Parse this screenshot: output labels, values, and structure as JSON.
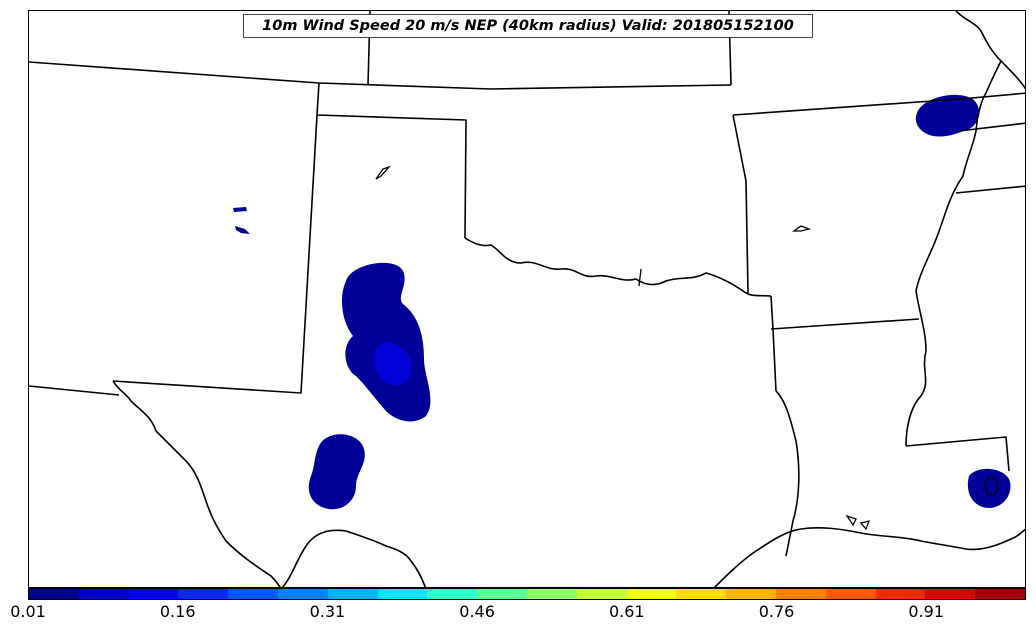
{
  "title": "10m Wind Speed 20 m/s NEP (40km radius) Valid: 201805152100",
  "colorbar": {
    "colors": [
      "#00008b",
      "#0000c8",
      "#0000ff",
      "#0a28ff",
      "#005aff",
      "#0082ff",
      "#00b4ff",
      "#00e6ff",
      "#2dffc8",
      "#5aff96",
      "#8cff64",
      "#c3ff32",
      "#f0ff00",
      "#ffdc00",
      "#ffb400",
      "#ff8200",
      "#ff5a00",
      "#ff2800",
      "#dc0000",
      "#a00000"
    ],
    "tick_labels": [
      "0.01",
      "0.16",
      "0.31",
      "0.46",
      "0.61",
      "0.76",
      "0.91"
    ]
  },
  "colors": {
    "low_prob": "#000099",
    "mid_prob": "#0000d8",
    "border": "#000000"
  }
}
